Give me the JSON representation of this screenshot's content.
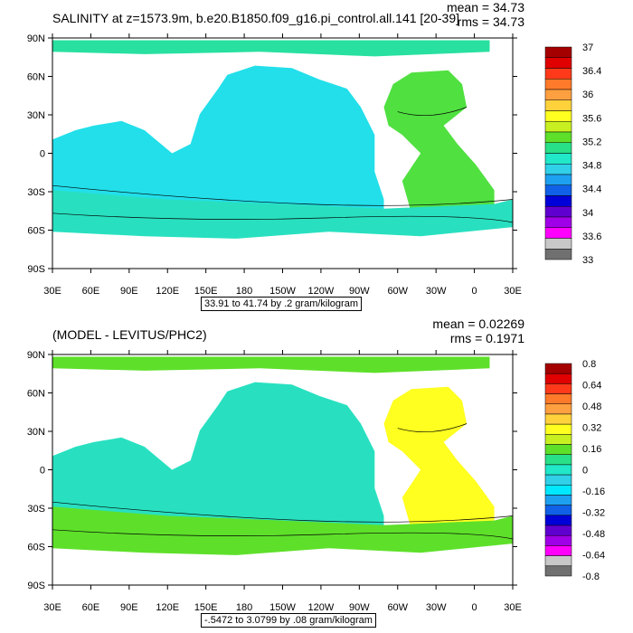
{
  "panels": [
    {
      "title": "SALINITY at z=1573.9m, b.e20.B1850.f09_g16.pi_control.all.141 [20-39]",
      "mean": "mean = 34.73",
      "rms": "rms = 34.73",
      "range_text": "33.91 to 41.74 by .2 gram/kilogram",
      "colorbar_labels": [
        "37",
        "36.4",
        "36",
        "35.6",
        "35.2",
        "34.8",
        "34.4",
        "34",
        "33.6",
        "33"
      ],
      "colorbar_colors": [
        "#a50000",
        "#e00000",
        "#ff3a1a",
        "#ff7a2a",
        "#ffa040",
        "#ffd23c",
        "#ffff20",
        "#c8f020",
        "#5ee02a",
        "#28e088",
        "#20e8c8",
        "#30d0e8",
        "#1ea0f0",
        "#1060e8",
        "#0000d8",
        "#6000d0",
        "#a000e8",
        "#ff00ff",
        "#c8c8c8",
        "#707070"
      ],
      "ocean_fill": "#22dfea",
      "southern_fill": "#28e0c0",
      "atlantic_fill": "#50e040",
      "arctic_fill": "#28e0a0"
    },
    {
      "title": "(MODEL - LEVITUS/PHC2)",
      "mean": "mean = 0.02269",
      "rms": "rms = 0.1971",
      "range_text": "-.5472 to 3.0799 by .08 gram/kilogram",
      "colorbar_labels": [
        "0.8",
        "0.64",
        "0.48",
        "0.32",
        "0.16",
        "0",
        "-0.16",
        "-0.32",
        "-0.48",
        "-0.64",
        "-0.8"
      ],
      "colorbar_colors": [
        "#a50000",
        "#e00000",
        "#ff3a1a",
        "#ff7a2a",
        "#ffa040",
        "#ffd23c",
        "#ffff20",
        "#c8f020",
        "#5ee02a",
        "#28e088",
        "#20e8c8",
        "#30d0e8",
        "#00e8ff",
        "#1ea0f0",
        "#1060e8",
        "#0000d8",
        "#6000d0",
        "#a000e8",
        "#ff00ff",
        "#c8c8c8",
        "#707070"
      ],
      "ocean_fill": "#28e0c0",
      "southern_fill": "#5ee02a",
      "atlantic_fill": "#ffff20",
      "arctic_fill": "#5ee02a"
    }
  ],
  "axes": {
    "x_ticks": [
      "30E",
      "60E",
      "90E",
      "120E",
      "150E",
      "180",
      "150W",
      "120W",
      "90W",
      "60W",
      "30W",
      "0",
      "30E"
    ],
    "y_ticks": [
      "90N",
      "60N",
      "30N",
      "0",
      "30S",
      "60S",
      "90S"
    ]
  }
}
